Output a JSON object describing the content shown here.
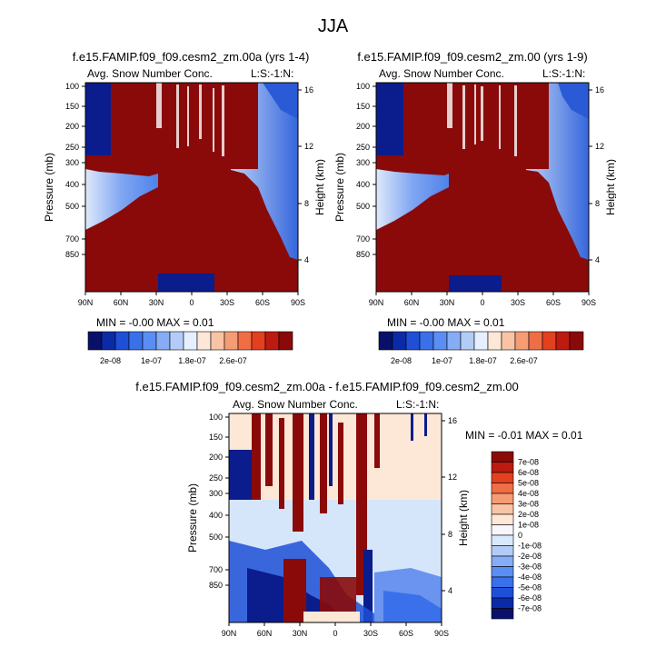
{
  "title": "JJA",
  "panels": [
    {
      "title": "f.e15.FAMIP.f09_f09.cesm2_zm.00a (yrs 1-4)",
      "left_label": "Avg. Snow Number Conc.",
      "right_label": "L:S:-1:N:",
      "stats": "MIN = -0.00   MAX =  0.01"
    },
    {
      "title": "f.e15.FAMIP.f09_f09.cesm2_zm.00 (yrs 1-9)",
      "left_label": "Avg. Snow Number Conc.",
      "right_label": "L:S:-1:N:",
      "stats": "MIN = -0.00   MAX =  0.01"
    },
    {
      "title": "f.e15.FAMIP.f09_f09.cesm2_zm.00a - f.e15.FAMIP.f09_f09.cesm2_zm.00",
      "left_label": "Avg. Snow Number Conc.",
      "right_label": "L:S:-1:N:",
      "stats": "MIN = -0.01   MAX =  0.01"
    }
  ],
  "axis": {
    "ylabel": "Pressure (mb)",
    "ylabel_right": "Height (km)",
    "pressure_ticks": [
      "100",
      "150",
      "200",
      "250",
      "300",
      "400",
      "500",
      "700",
      "850"
    ],
    "height_ticks": [
      "16",
      "12",
      "8",
      "4"
    ],
    "lat_ticks": [
      "90N",
      "60N",
      "30N",
      "0",
      "30S",
      "60S",
      "90S"
    ]
  },
  "colorbar_top": {
    "labels": [
      "2e-08",
      "1e-07",
      "1.8e-07",
      "2.6e-07"
    ],
    "colors": [
      "#08106a",
      "#0a2aa8",
      "#1f4fd6",
      "#3a70ea",
      "#5b8ef2",
      "#85acf5",
      "#b3ccf7",
      "#e6efff",
      "#fde7d6",
      "#f9c4a5",
      "#f59c75",
      "#f06e46",
      "#e2401f",
      "#bd1a10",
      "#8a0a0a"
    ]
  },
  "colorbar_diff": {
    "labels": [
      "7e-08",
      "6e-08",
      "5e-08",
      "4e-08",
      "3e-08",
      "2e-08",
      "1e-08",
      "0",
      "-1e-08",
      "-2e-08",
      "-3e-08",
      "-4e-08",
      "-5e-08",
      "-6e-08",
      "-7e-08"
    ],
    "colors": [
      "#8a0a0a",
      "#bd1a10",
      "#e2401f",
      "#f06e46",
      "#f59c75",
      "#f9c4a5",
      "#fde7d6",
      "#f6f6fb",
      "#d9e8fb",
      "#b3ccf7",
      "#85acf5",
      "#5b8ef2",
      "#3a70ea",
      "#1f4fd6",
      "#0a2aa8",
      "#08106a"
    ]
  },
  "chart_data": [
    {
      "type": "heatmap",
      "title": "f.e15.FAMIP.f09_f09.cesm2_zm.00a (yrs 1-4)",
      "xlabel": "",
      "ylabel": "Pressure (mb)",
      "y2label": "Height (km)",
      "x_ticks": [
        "90N",
        "60N",
        "30N",
        "0",
        "30S",
        "60S",
        "90S"
      ],
      "y_ticks": [
        100,
        150,
        200,
        250,
        300,
        400,
        500,
        700,
        850
      ],
      "min": -0.0,
      "max": 0.01,
      "variable": "Avg. Snow Number Conc."
    },
    {
      "type": "heatmap",
      "title": "f.e15.FAMIP.f09_f09.cesm2_zm.00 (yrs 1-9)",
      "xlabel": "",
      "ylabel": "Pressure (mb)",
      "y2label": "Height (km)",
      "x_ticks": [
        "90N",
        "60N",
        "30N",
        "0",
        "30S",
        "60S",
        "90S"
      ],
      "y_ticks": [
        100,
        150,
        200,
        250,
        300,
        400,
        500,
        700,
        850
      ],
      "min": -0.0,
      "max": 0.01,
      "variable": "Avg. Snow Number Conc."
    },
    {
      "type": "heatmap",
      "title": "f.e15.FAMIP.f09_f09.cesm2_zm.00a - f.e15.FAMIP.f09_f09.cesm2_zm.00",
      "xlabel": "",
      "ylabel": "Pressure (mb)",
      "y2label": "Height (km)",
      "x_ticks": [
        "90N",
        "60N",
        "30N",
        "0",
        "30S",
        "60S",
        "90S"
      ],
      "y_ticks": [
        100,
        150,
        200,
        250,
        300,
        400,
        500,
        700,
        850
      ],
      "min": -0.01,
      "max": 0.01,
      "variable": "Avg. Snow Number Conc."
    }
  ]
}
